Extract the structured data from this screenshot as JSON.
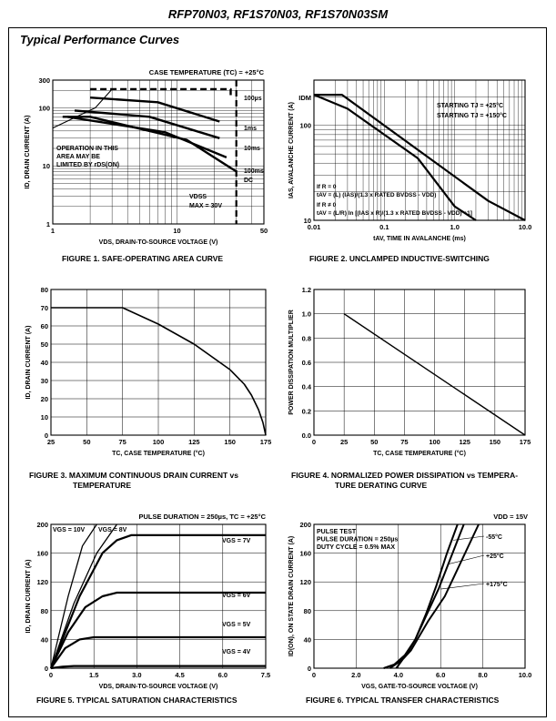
{
  "header": {
    "title": "RFP70N03, RF1S70N03, RF1S70N03SM"
  },
  "section": {
    "title": "Typical Performance Curves"
  },
  "chart_data": [
    {
      "id": "fig1",
      "type": "line",
      "scale": "log-log",
      "caption": "FIGURE 1.  SAFE-OPERATING AREA CURVE",
      "xlabel": "VDS, DRAIN-TO-SOURCE VOLTAGE (V)",
      "ylabel": "ID, DRAIN CURRENT (A)",
      "xlim": [
        1,
        50
      ],
      "ylim": [
        1,
        300
      ],
      "xticks": [
        {
          "v": 1,
          "t": "1"
        },
        {
          "v": 10,
          "t": "10"
        },
        {
          "v": 50,
          "t": "50"
        }
      ],
      "yticks": [
        {
          "v": 1,
          "t": "1"
        },
        {
          "v": 10,
          "t": "10"
        },
        {
          "v": 100,
          "t": "100"
        },
        {
          "v": 300,
          "t": "300"
        }
      ],
      "annotations": {
        "case_temp": "CASE TEMPERATURE (TC) = +25°C",
        "limit1": "OPERATION IN THIS",
        "limit2": "AREA MAY BE",
        "limit3": "LIMITED BY rDS(ON)",
        "vdss1": "VDSS",
        "vdss2": "MAX = 30V"
      },
      "series": [
        {
          "name": "100µs",
          "points": [
            [
              2,
              210
            ],
            [
              27,
              210
            ],
            [
              27,
              160
            ]
          ]
        },
        {
          "name": "1ms",
          "points": [
            [
              2,
              150
            ],
            [
              7,
              125
            ],
            [
              22,
              58
            ]
          ]
        },
        {
          "name": "10ms",
          "points": [
            [
              1.5,
              90
            ],
            [
              6,
              70
            ],
            [
              22,
              30
            ]
          ]
        },
        {
          "name": "100ms",
          "points": [
            [
              1.3,
              70
            ],
            [
              8,
              38
            ],
            [
              25,
              14
            ]
          ]
        },
        {
          "name": "DC",
          "points": [
            [
              1.2,
              70
            ],
            [
              2,
              70
            ],
            [
              12,
              28
            ],
            [
              30,
              8
            ]
          ]
        },
        {
          "name": "rDS(ON) limit",
          "points": [
            [
              1,
              45
            ],
            [
              2.2,
              100
            ],
            [
              3,
              210
            ]
          ]
        },
        {
          "name": "VDSS max",
          "points": [
            [
              30,
              300
            ],
            [
              30,
              1
            ]
          ]
        }
      ]
    },
    {
      "id": "fig2",
      "type": "line",
      "scale": "log-log",
      "caption": "FIGURE 2.  UNCLAMPED INDUCTIVE-SWITCHING",
      "xlabel": "tAV, TIME IN AVALANCHE (ms)",
      "ylabel": "IAS, AVALANCHE CURRENT (A)",
      "xlim": [
        0.01,
        10
      ],
      "ylim": [
        10,
        300
      ],
      "xticks": [
        {
          "v": 0.01,
          "t": "0.01"
        },
        {
          "v": 0.1,
          "t": "0.1"
        },
        {
          "v": 1,
          "t": "1.0"
        },
        {
          "v": 10,
          "t": "10.0"
        }
      ],
      "yticks": [
        {
          "v": 10,
          "t": "10"
        },
        {
          "v": 100,
          "t": "100"
        }
      ],
      "idm_label": "IDM",
      "annotations": {
        "t25": "STARTING TJ = +25°C",
        "t150": "STARTING TJ = +150°C",
        "f1": "If R = 0",
        "f2": "tAV = (L) (IAS)/(1.3 x RATED BVDSS - VDD)",
        "f3": "If R ≠ 0",
        "f4": "tAV = (L/R) ln [(IAS x R)/(1.3 x RATED BVDSS - VDD) +1]"
      },
      "series": [
        {
          "name": "STARTING TJ = +25°C",
          "points": [
            [
              0.01,
              210
            ],
            [
              0.025,
              210
            ],
            [
              3,
              16
            ],
            [
              10,
              10
            ]
          ]
        },
        {
          "name": "STARTING TJ = +150°C",
          "points": [
            [
              0.01,
              210
            ],
            [
              0.03,
              150
            ],
            [
              0.3,
              45
            ],
            [
              1,
              14
            ],
            [
              2,
              10
            ]
          ]
        }
      ]
    },
    {
      "id": "fig3",
      "type": "line",
      "caption1": "FIGURE 3.  MAXIMUM CONTINUOUS DRAIN CURRENT vs",
      "caption2": "TEMPERATURE",
      "xlabel": "TC, CASE TEMPERATURE (°C)",
      "ylabel": "ID, DRAIN CURRENT (A)",
      "xlim": [
        25,
        175
      ],
      "ylim": [
        0,
        80
      ],
      "xticks": [
        25,
        50,
        75,
        100,
        125,
        150,
        175
      ],
      "yticks": [
        0,
        10,
        20,
        30,
        40,
        50,
        60,
        70,
        80
      ],
      "series": [
        {
          "name": "ID",
          "x": [
            25,
            75,
            100,
            125,
            150,
            160,
            165,
            170,
            173,
            175
          ],
          "y": [
            70,
            70,
            61,
            50,
            36,
            28,
            22,
            14,
            7,
            0
          ]
        }
      ]
    },
    {
      "id": "fig4",
      "type": "line",
      "caption1": "FIGURE 4.  NORMALIZED POWER DISSIPATION vs TEMPERA-",
      "caption2": "TURE DERATING CURVE",
      "xlabel": "TC, CASE TEMPERATURE (°C)",
      "ylabel": "POWER DISSIPATION MULTIPLIER",
      "xlim": [
        0,
        175
      ],
      "ylim": [
        0,
        1.2
      ],
      "xticks": [
        0,
        25,
        50,
        75,
        100,
        125,
        150,
        175
      ],
      "yticks": [
        0,
        0.2,
        0.4,
        0.6,
        0.8,
        1.0,
        1.2
      ],
      "series": [
        {
          "name": "derating",
          "x": [
            25,
            175
          ],
          "y": [
            1.0,
            0
          ]
        }
      ]
    },
    {
      "id": "fig5",
      "type": "line",
      "caption": "FIGURE 5.  TYPICAL SATURATION CHARACTERISTICS",
      "xlabel": "VDS, DRAIN-TO-SOURCE VOLTAGE (V)",
      "ylabel": "ID, DRAIN CURRENT (A)",
      "xlim": [
        0,
        7.5
      ],
      "ylim": [
        0,
        200
      ],
      "xticks": [
        0,
        1.5,
        3.0,
        4.5,
        6.0,
        7.5
      ],
      "yticks": [
        0,
        40,
        80,
        120,
        160,
        200
      ],
      "pulse": "PULSE DURATION = 250µs, TC = +25°C",
      "series": [
        {
          "name": "VGS = 10V",
          "x": [
            0,
            0.6,
            1.1,
            1.6
          ],
          "y": [
            0,
            100,
            170,
            200
          ]
        },
        {
          "name": "VGS = 8V",
          "x": [
            0,
            0.8,
            1.6,
            2.3
          ],
          "y": [
            0,
            90,
            160,
            200
          ]
        },
        {
          "name": "VGS = 7V",
          "x": [
            0,
            1,
            1.8,
            2.3,
            2.8,
            7.5
          ],
          "y": [
            0,
            100,
            160,
            178,
            185,
            185
          ]
        },
        {
          "name": "VGS = 6V",
          "x": [
            0,
            0.6,
            1.2,
            1.8,
            2.3,
            7.5
          ],
          "y": [
            0,
            50,
            85,
            100,
            105,
            105
          ]
        },
        {
          "name": "VGS = 5V",
          "x": [
            0,
            0.5,
            1,
            1.5,
            7.5
          ],
          "y": [
            0,
            28,
            40,
            43,
            43
          ]
        },
        {
          "name": "VGS = 4V",
          "x": [
            0,
            0.4,
            0.8,
            7.5
          ],
          "y": [
            0,
            2,
            3,
            3
          ]
        }
      ]
    },
    {
      "id": "fig6",
      "type": "line",
      "caption": "FIGURE 6.  TYPICAL TRANSFER CHARACTERISTICS",
      "xlabel": "VGS, GATE-TO-SOURCE VOLTAGE (V)",
      "ylabel": "ID(ON), ON STATE DRAIN CURRENT (A)",
      "xlim": [
        0,
        10
      ],
      "ylim": [
        0,
        200
      ],
      "xticks": [
        {
          "v": 0,
          "t": "0"
        },
        {
          "v": 2,
          "t": "2.0"
        },
        {
          "v": 4,
          "t": "4.0"
        },
        {
          "v": 6,
          "t": "6.0"
        },
        {
          "v": 8,
          "t": "8.0"
        },
        {
          "v": 10,
          "t": "10.0"
        }
      ],
      "yticks": [
        0,
        40,
        80,
        120,
        160,
        200
      ],
      "vdd": "VDD = 15V",
      "notes": [
        "PULSE TEST",
        "PULSE DURATION = 250µs",
        "DUTY CYCLE = 0.5% MAX"
      ],
      "series": [
        {
          "name": "-55°C",
          "x": [
            3.3,
            3.8,
            4.3,
            4.8,
            5.3,
            5.8,
            6.3,
            6.8
          ],
          "y": [
            0,
            5,
            18,
            40,
            75,
            115,
            160,
            200
          ]
        },
        {
          "name": "+25°C",
          "x": [
            3.6,
            4,
            4.4,
            4.8,
            5.3,
            5.9,
            6.5,
            7.1
          ],
          "y": [
            0,
            8,
            20,
            40,
            72,
            110,
            155,
            200
          ]
        },
        {
          "name": "+175°C",
          "x": [
            3.9,
            4.2,
            4.6,
            4.9,
            5.4,
            6.2,
            7,
            7.8
          ],
          "y": [
            0,
            12,
            25,
            40,
            65,
            100,
            150,
            200
          ]
        }
      ]
    }
  ]
}
